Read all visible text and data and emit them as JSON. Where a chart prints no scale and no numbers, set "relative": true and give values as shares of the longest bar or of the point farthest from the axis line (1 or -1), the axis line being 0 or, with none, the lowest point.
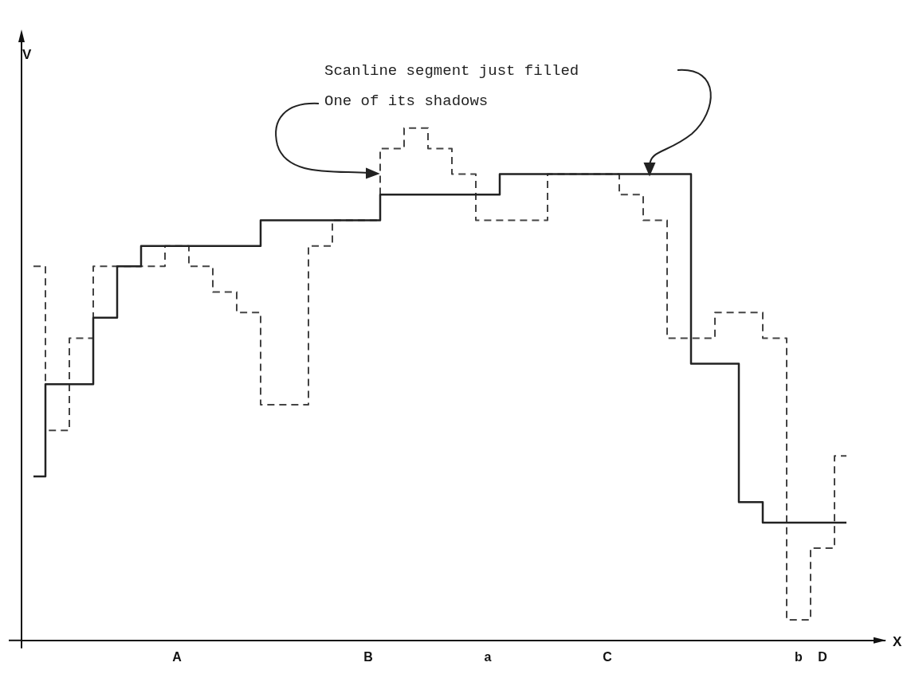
{
  "chart_data": {
    "type": "step",
    "relative": true,
    "tick_labels": "x",
    "xlabel": "X",
    "ylabel": "V",
    "categories": [
      null,
      null,
      null,
      null,
      null,
      null,
      "A",
      null,
      null,
      null,
      null,
      null,
      null,
      null,
      "B",
      null,
      null,
      null,
      null,
      "a",
      null,
      null,
      null,
      null,
      "C",
      null,
      null,
      null,
      null,
      null,
      null,
      null,
      "b",
      "D",
      null
    ],
    "series": [
      {
        "color": "#222222",
        "line_style": "solid",
        "values": [
          0.32,
          0.5,
          0.5,
          0.63,
          0.73,
          0.77,
          0.77,
          0.77,
          0.77,
          0.77,
          0.82,
          0.82,
          0.82,
          0.82,
          0.82,
          0.87,
          0.87,
          0.87,
          0.87,
          0.87,
          0.91,
          0.91,
          0.91,
          0.91,
          0.91,
          0.91,
          0.91,
          0.91,
          0.54,
          0.54,
          0.27,
          0.23,
          0.23,
          0.23,
          0.23
        ]
      },
      {
        "color": "#444444",
        "line_style": "dashed",
        "values": [
          0.73,
          0.41,
          0.59,
          0.73,
          0.73,
          0.73,
          0.77,
          0.73,
          0.68,
          0.64,
          0.46,
          0.46,
          0.77,
          0.82,
          0.82,
          0.96,
          1,
          0.96,
          0.91,
          0.82,
          0.82,
          0.82,
          0.91,
          0.91,
          0.91,
          0.87,
          0.82,
          0.59,
          0.59,
          0.64,
          0.64,
          0.59,
          0.04,
          0.18,
          0.36
        ]
      }
    ],
    "annotations": [
      "Scanline segment just filled",
      "One of its shadows"
    ]
  }
}
